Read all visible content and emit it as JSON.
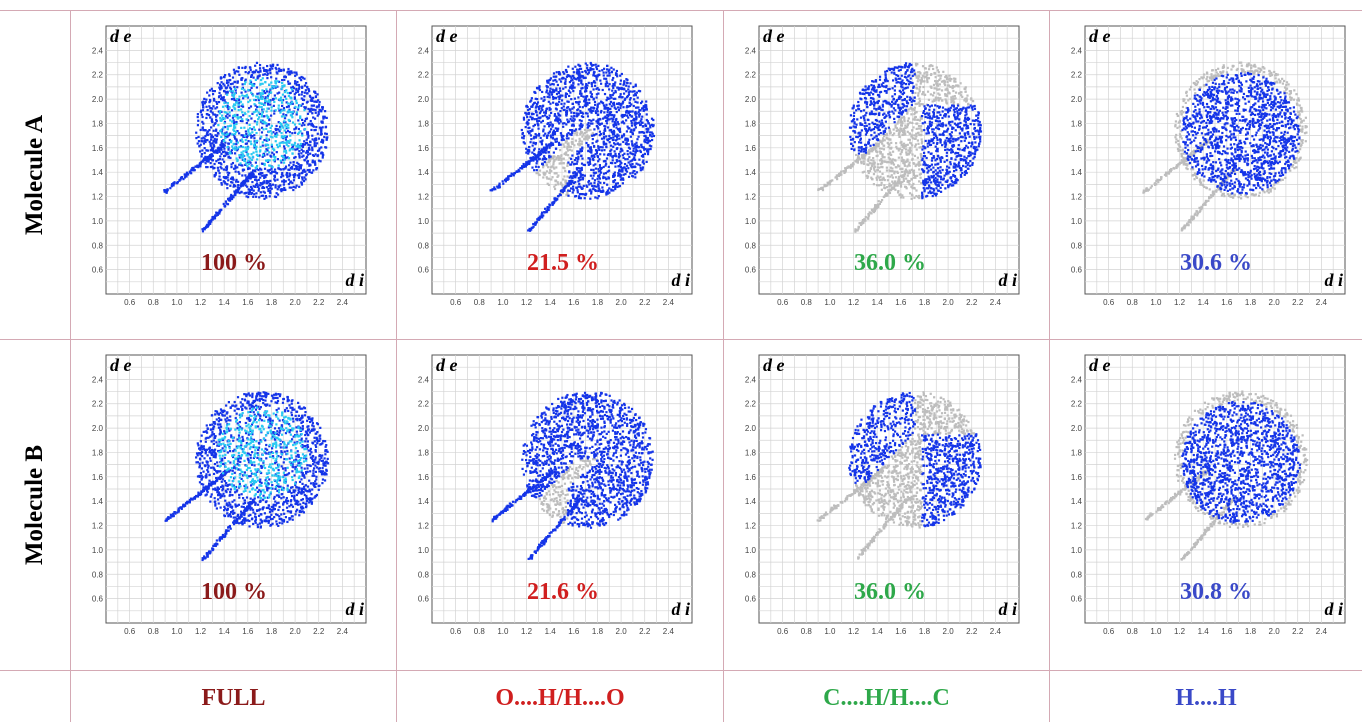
{
  "colors": {
    "full": "#8b1a1a",
    "oh": "#d01f1f",
    "ch": "#2ea84a",
    "hh": "#3a49c8",
    "blue": "#1434e8",
    "cyan": "#29c9f2",
    "grey": "#bdbdbd"
  },
  "row_labels": [
    "Molecule A",
    "Molecule B"
  ],
  "column_labels": [
    "FULL",
    "O....H/H....O",
    "C....H/H....C",
    "H....H"
  ],
  "axis": {
    "y_label": "d e",
    "x_label": "d i",
    "ticks": [
      "0.6",
      "0.8",
      "1.0",
      "1.2",
      "1.4",
      "1.6",
      "1.8",
      "2.0",
      "2.2",
      "2.4"
    ]
  },
  "chart_data": [
    {
      "type": "scatter",
      "row": "Molecule A",
      "contact": "FULL",
      "percentage": "100 %",
      "xlim": [
        0.4,
        2.6
      ],
      "ylim": [
        0.4,
        2.6
      ],
      "xlabel": "d i",
      "ylabel": "d e"
    },
    {
      "type": "scatter",
      "row": "Molecule A",
      "contact": "O....H/H....O",
      "percentage": "21.5 %",
      "xlim": [
        0.4,
        2.6
      ],
      "ylim": [
        0.4,
        2.6
      ],
      "xlabel": "d i",
      "ylabel": "d e"
    },
    {
      "type": "scatter",
      "row": "Molecule A",
      "contact": "C....H/H....C",
      "percentage": "36.0 %",
      "xlim": [
        0.4,
        2.6
      ],
      "ylim": [
        0.4,
        2.6
      ],
      "xlabel": "d i",
      "ylabel": "d e"
    },
    {
      "type": "scatter",
      "row": "Molecule A",
      "contact": "H....H",
      "percentage": "30.6 %",
      "xlim": [
        0.4,
        2.6
      ],
      "ylim": [
        0.4,
        2.6
      ],
      "xlabel": "d i",
      "ylabel": "d e"
    },
    {
      "type": "scatter",
      "row": "Molecule B",
      "contact": "FULL",
      "percentage": "100 %",
      "xlim": [
        0.4,
        2.6
      ],
      "ylim": [
        0.4,
        2.6
      ],
      "xlabel": "d i",
      "ylabel": "d e"
    },
    {
      "type": "scatter",
      "row": "Molecule B",
      "contact": "O....H/H....O",
      "percentage": "21.6 %",
      "xlim": [
        0.4,
        2.6
      ],
      "ylim": [
        0.4,
        2.6
      ],
      "xlabel": "d i",
      "ylabel": "d e"
    },
    {
      "type": "scatter",
      "row": "Molecule B",
      "contact": "C....H/H....C",
      "percentage": "36.0 %",
      "xlim": [
        0.4,
        2.6
      ],
      "ylim": [
        0.4,
        2.6
      ],
      "xlabel": "d i",
      "ylabel": "d e"
    },
    {
      "type": "scatter",
      "row": "Molecule B",
      "contact": "H....H",
      "percentage": "30.8 %",
      "xlim": [
        0.4,
        2.6
      ],
      "ylim": [
        0.4,
        2.6
      ],
      "xlabel": "d i",
      "ylabel": "d e"
    }
  ]
}
